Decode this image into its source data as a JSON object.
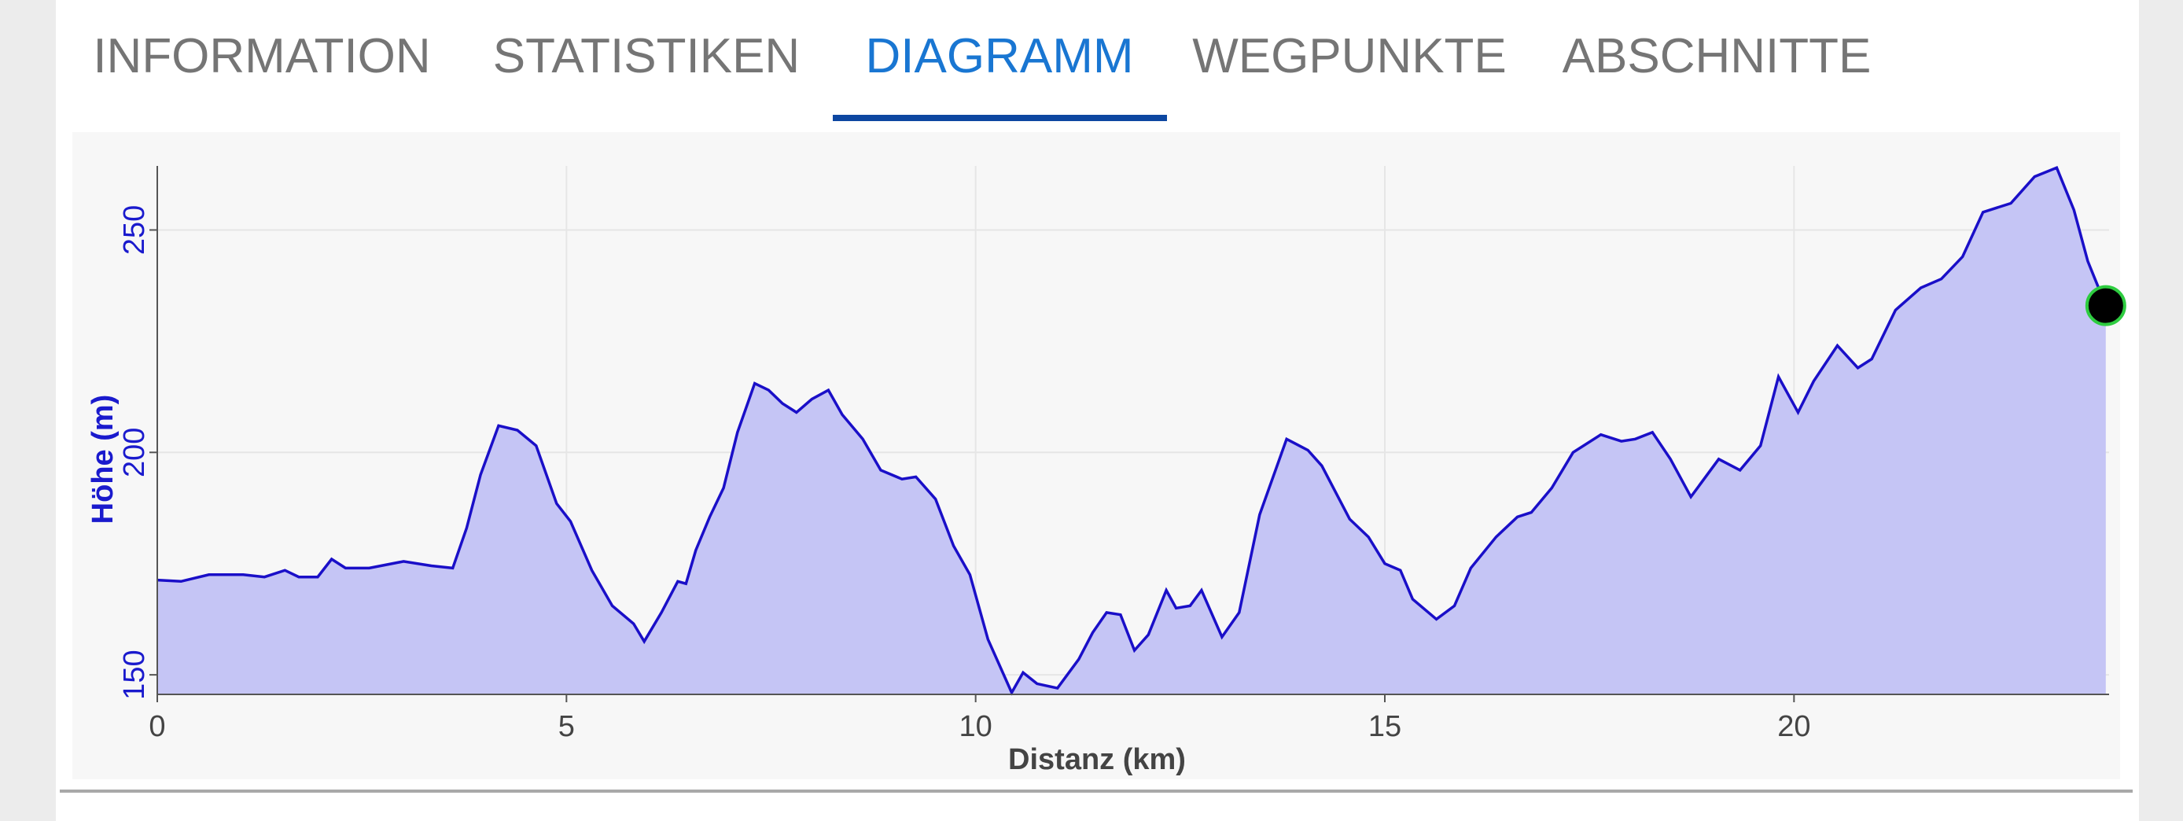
{
  "tabs": [
    "INFORMATION",
    "STATISTIKEN",
    "DIAGRAMM",
    "WEGPUNKTE",
    "ABSCHNITTE"
  ],
  "selected_tab": 2,
  "chart_data": {
    "type": "area",
    "xlabel": "Distanz (km)",
    "ylabel": "Höhe (m)",
    "x": [
      0,
      0.29,
      0.63,
      1.05,
      1.31,
      1.56,
      1.73,
      1.96,
      2.13,
      2.3,
      2.59,
      3.01,
      3.35,
      3.61,
      3.78,
      3.95,
      4.17,
      4.4,
      4.63,
      4.88,
      5.05,
      5.31,
      5.56,
      5.82,
      5.95,
      6.16,
      6.36,
      6.46,
      6.58,
      6.75,
      6.92,
      7.09,
      7.3,
      7.47,
      7.64,
      7.81,
      8.0,
      8.2,
      8.37,
      8.62,
      8.84,
      9.1,
      9.27,
      9.51,
      9.73,
      9.93,
      10.15,
      10.44,
      10.58,
      10.75,
      11.0,
      11.26,
      11.43,
      11.6,
      11.77,
      11.94,
      12.11,
      12.33,
      12.45,
      12.62,
      12.76,
      13.01,
      13.22,
      13.47,
      13.8,
      14.06,
      14.23,
      14.57,
      14.8,
      15.0,
      15.19,
      15.34,
      15.63,
      15.85,
      16.05,
      16.36,
      16.62,
      16.79,
      17.04,
      17.3,
      17.64,
      17.89,
      18.06,
      18.27,
      18.49,
      18.74,
      19.08,
      19.34,
      19.59,
      19.81,
      20.05,
      20.24,
      20.53,
      20.78,
      20.95,
      21.24,
      21.55,
      21.8,
      22.06,
      22.31,
      22.65,
      22.94,
      23.21,
      23.42,
      23.59,
      23.81
    ],
    "values": [
      171.3,
      171,
      172.5,
      172.5,
      172,
      173.5,
      172,
      172,
      176,
      174,
      174,
      175.5,
      174.5,
      174,
      183,
      195,
      206,
      205,
      201.5,
      188.5,
      184.5,
      173.5,
      165.5,
      161.5,
      157.5,
      164,
      171,
      170.5,
      178,
      185.5,
      192,
      204.5,
      215.5,
      214,
      211,
      209,
      212,
      214,
      208.5,
      203,
      196,
      194,
      194.5,
      189.5,
      179,
      172.5,
      158,
      146,
      150.5,
      148,
      147,
      153.5,
      159.5,
      164,
      163.5,
      155.5,
      159,
      169,
      165,
      165.5,
      169,
      158.5,
      164,
      186,
      203,
      200.5,
      197,
      185,
      181,
      175,
      173.5,
      167,
      162.5,
      165.5,
      174,
      181,
      185.5,
      186.5,
      192,
      200,
      204,
      202.5,
      203,
      204.5,
      198.5,
      190,
      198.5,
      196,
      201.5,
      217,
      209,
      216,
      224,
      219,
      221,
      232,
      237,
      239,
      244,
      254,
      256,
      262,
      264,
      254.5,
      243,
      233
    ],
    "color": "#1a0fc8",
    "fill": "#c5c5f5",
    "xlim": [
      0,
      23.85
    ],
    "ylim": [
      145.6,
      264.4
    ],
    "xticks": [
      0,
      5,
      10,
      15,
      20
    ],
    "yticks": [
      150,
      200,
      250
    ],
    "grid": true
  }
}
